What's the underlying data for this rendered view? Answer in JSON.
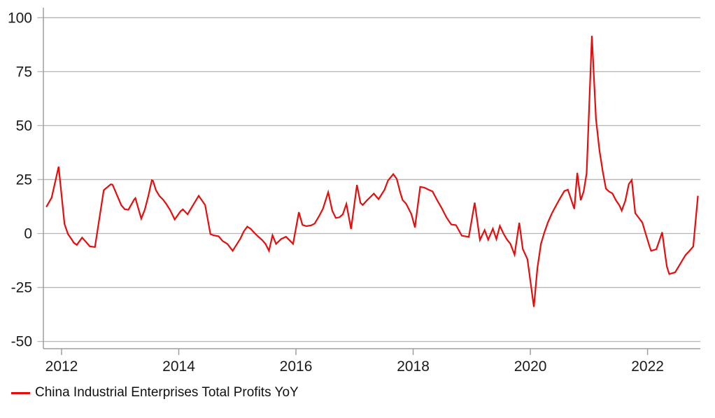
{
  "colors": {
    "background": "#ffffff",
    "grid": "#b5b5b5",
    "axis": "#9e9e9e",
    "tick": "#9e9e9e",
    "text": "#1a1a1a",
    "series_red": "#e60d0d"
  },
  "legend": {
    "label": "China Industrial Enterprises Total Profits YoY",
    "swatch": "red-line"
  },
  "chart_data": {
    "type": "line",
    "title": "",
    "xlabel": "",
    "ylabel": "",
    "grid": true,
    "legend_position": "bottom-left",
    "xlim": [
      2011.68,
      2022.95
    ],
    "ylim": [
      -50,
      100
    ],
    "x_ticks": [
      2012,
      2014,
      2016,
      2018,
      2020,
      2022
    ],
    "y_ticks": [
      100,
      75,
      50,
      25,
      0,
      -25,
      -50
    ],
    "series": [
      {
        "name": "China Industrial Enterprises Total Profits YoY",
        "color": "#e60d0d",
        "x": [
          2011.74,
          2011.83,
          2011.95,
          2012.05,
          2012.11,
          2012.17,
          2012.21,
          2012.26,
          2012.35,
          2012.42,
          2012.48,
          2012.57,
          2012.72,
          2012.84,
          2012.87,
          2012.96,
          2013.02,
          2013.08,
          2013.14,
          2013.24,
          2013.26,
          2013.36,
          2013.42,
          2013.48,
          2013.54,
          2013.56,
          2013.61,
          2013.67,
          2013.73,
          2013.79,
          2013.85,
          2013.93,
          2014.03,
          2014.07,
          2014.15,
          2014.34,
          2014.45,
          2014.54,
          2014.59,
          2014.68,
          2014.75,
          2014.83,
          2014.92,
          2015.05,
          2015.11,
          2015.17,
          2015.23,
          2015.29,
          2015.35,
          2015.42,
          2015.48,
          2015.54,
          2015.6,
          2015.66,
          2015.75,
          2015.83,
          2015.95,
          2016.05,
          2016.11,
          2016.18,
          2016.26,
          2016.32,
          2016.4,
          2016.46,
          2016.55,
          2016.62,
          2016.68,
          2016.74,
          2016.8,
          2016.86,
          2016.94,
          2017.04,
          2017.1,
          2017.14,
          2017.21,
          2017.27,
          2017.33,
          2017.41,
          2017.51,
          2017.57,
          2017.66,
          2017.72,
          2017.78,
          2017.82,
          2017.88,
          2017.97,
          2018.03,
          2018.12,
          2018.19,
          2018.27,
          2018.33,
          2018.41,
          2018.49,
          2018.57,
          2018.65,
          2018.73,
          2018.83,
          2018.95,
          2019.05,
          2019.14,
          2019.22,
          2019.28,
          2019.36,
          2019.42,
          2019.48,
          2019.54,
          2019.6,
          2019.66,
          2019.73,
          2019.81,
          2019.87,
          2019.95,
          2020.06,
          2020.12,
          2020.18,
          2020.24,
          2020.3,
          2020.37,
          2020.44,
          2020.5,
          2020.58,
          2020.64,
          2020.75,
          2020.8,
          2020.86,
          2020.91,
          2020.96,
          2021.05,
          2021.12,
          2021.18,
          2021.24,
          2021.29,
          2021.34,
          2021.4,
          2021.46,
          2021.52,
          2021.56,
          2021.62,
          2021.68,
          2021.73,
          2021.79,
          2021.85,
          2021.91,
          2021.97,
          2022.03,
          2022.06,
          2022.15,
          2022.25,
          2022.29,
          2022.33,
          2022.37,
          2022.43,
          2022.47,
          2022.53,
          2022.59,
          2022.65,
          2022.71,
          2022.78,
          2022.86
        ],
        "y": [
          12.3,
          16.6,
          31.0,
          4.4,
          -0.3,
          -2.6,
          -4.3,
          -5.3,
          -1.9,
          -4.0,
          -5.9,
          -6.3,
          20.1,
          22.8,
          22.6,
          16.9,
          13.1,
          11.2,
          11.0,
          15.8,
          16.4,
          6.9,
          11.0,
          17.4,
          24.7,
          24.4,
          20.1,
          17.4,
          15.8,
          13.6,
          11.0,
          6.5,
          10.3,
          11.2,
          8.9,
          17.5,
          13.2,
          -0.3,
          -0.8,
          -1.3,
          -3.5,
          -4.8,
          -8.0,
          -2.4,
          1.0,
          3.2,
          2.1,
          0.3,
          -1.3,
          -3.0,
          -4.8,
          -8.0,
          -0.8,
          -4.8,
          -2.5,
          -1.5,
          -4.8,
          9.9,
          4.0,
          3.4,
          3.8,
          4.6,
          8.3,
          11.5,
          19.1,
          10.5,
          7.2,
          7.5,
          8.9,
          13.7,
          2.1,
          22.5,
          14.2,
          13.2,
          15.3,
          16.9,
          18.5,
          15.9,
          20.2,
          24.5,
          27.5,
          25.3,
          19.0,
          15.5,
          13.8,
          9.0,
          2.8,
          21.6,
          21.3,
          20.2,
          19.5,
          15.4,
          11.6,
          7.4,
          4.2,
          3.9,
          -1.0,
          -1.6,
          14.3,
          -3.0,
          1.6,
          -2.9,
          2.2,
          -2.6,
          3.5,
          0.0,
          -2.8,
          -4.8,
          -9.8,
          5.0,
          -7.1,
          -11.9,
          -34.0,
          -16.1,
          -4.8,
          0.6,
          5.2,
          9.5,
          13.0,
          16.0,
          19.7,
          20.3,
          11.4,
          28.1,
          15.4,
          19.5,
          27.9,
          91.6,
          52.9,
          38.4,
          28.1,
          20.8,
          19.5,
          18.6,
          15.4,
          13.0,
          10.6,
          15.2,
          22.9,
          24.8,
          9.4,
          7.3,
          5.1,
          -0.3,
          -5.6,
          -8.0,
          -7.3,
          0.6,
          -7.8,
          -15.3,
          -18.8,
          -18.3,
          -18.0,
          -15.3,
          -12.6,
          -9.9,
          -8.2,
          -6.0,
          17.5
        ]
      }
    ]
  }
}
